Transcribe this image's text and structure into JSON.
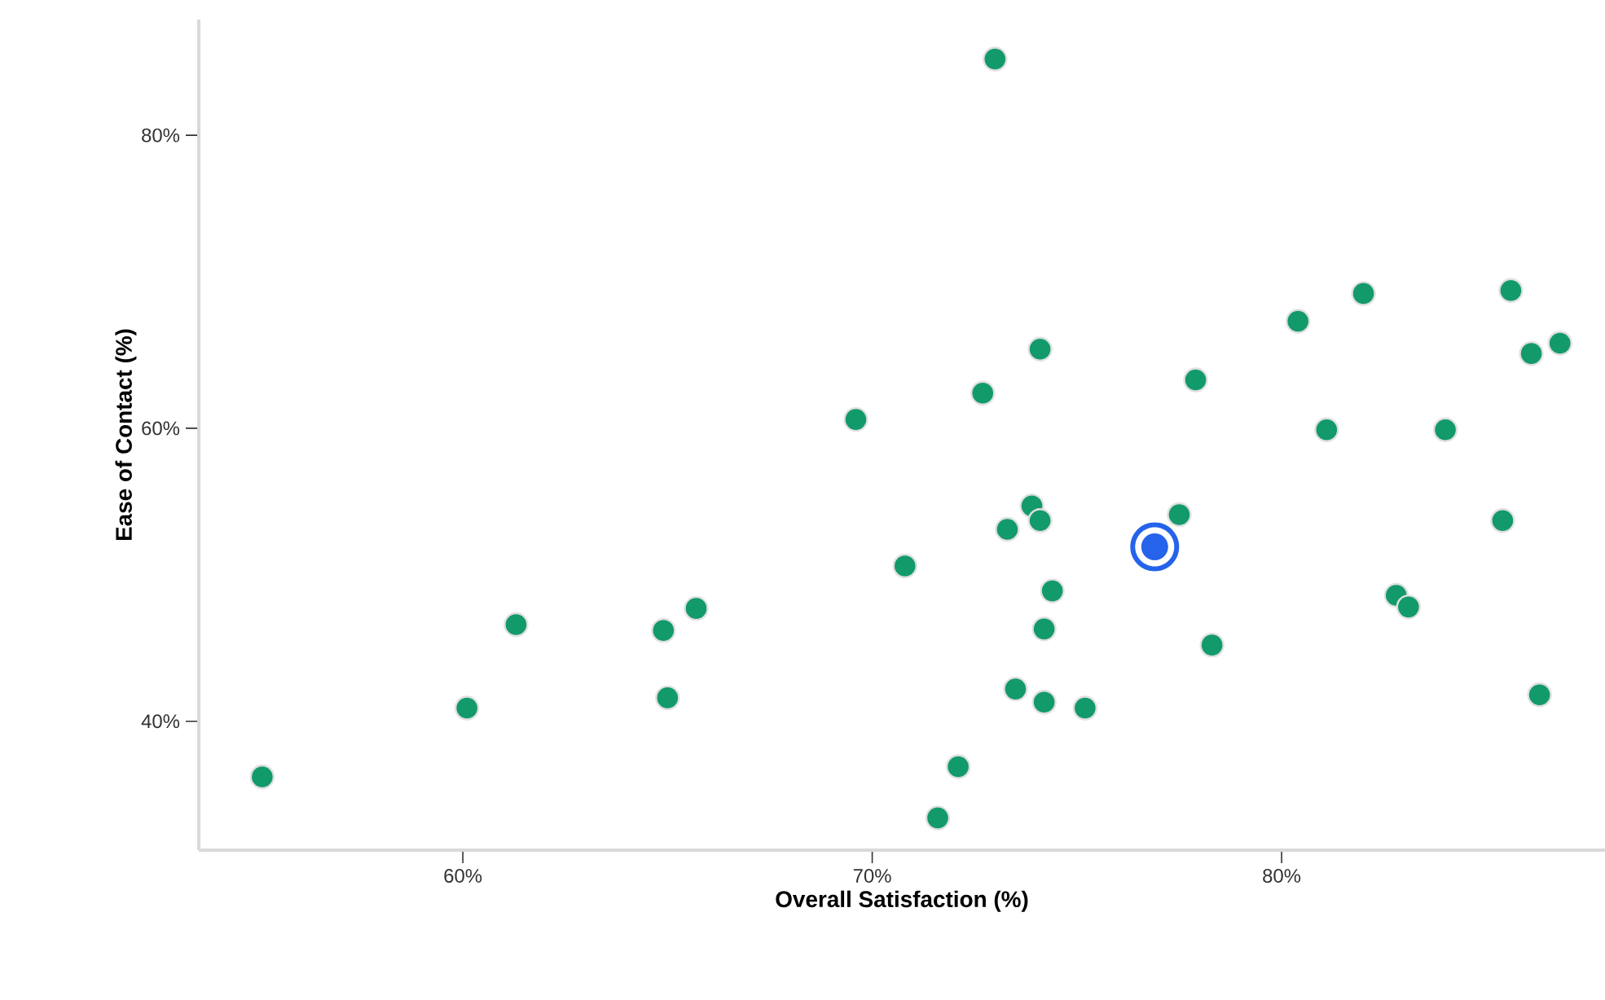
{
  "chart_data": {
    "type": "scatter",
    "xlabel": "Overall Satisfaction (%)",
    "ylabel": "Ease of Contact (%)",
    "xlim": [
      53.55,
      87.9
    ],
    "ylim": [
      31.2,
      87.9
    ],
    "xticks": [
      {
        "value": 60,
        "label": "60%"
      },
      {
        "value": 70,
        "label": "70%"
      },
      {
        "value": 80,
        "label": "80%"
      }
    ],
    "yticks": [
      {
        "value": 40,
        "label": "40%"
      },
      {
        "value": 60,
        "label": "60%"
      },
      {
        "value": 80,
        "label": "80%"
      }
    ],
    "marker": "circle",
    "grid": false,
    "series": [
      {
        "color": "#139a6b",
        "x": [
          73.0,
          55.1,
          60.1,
          61.3,
          64.9,
          65.0,
          65.7,
          69.6,
          70.8,
          72.1,
          71.6,
          72.7,
          73.3,
          73.9,
          74.1,
          74.1,
          74.4,
          74.2,
          74.2,
          73.5,
          75.2,
          77.5,
          77.9,
          78.3,
          80.4,
          81.1,
          82.0,
          82.8,
          83.1,
          84.0,
          85.4,
          85.6,
          86.1,
          86.8,
          86.3
        ],
        "values": [
          85.2,
          36.2,
          40.9,
          46.6,
          46.2,
          41.6,
          47.7,
          60.6,
          50.6,
          36.9,
          33.4,
          62.4,
          53.1,
          54.7,
          65.4,
          53.7,
          48.9,
          46.3,
          41.3,
          42.2,
          40.9,
          54.1,
          63.3,
          45.2,
          67.3,
          59.9,
          69.2,
          48.6,
          47.8,
          59.9,
          53.7,
          69.4,
          65.1,
          65.8,
          41.8
        ]
      },
      {
        "color": "#2563eb",
        "x": [
          76.9
        ],
        "values": [
          51.9
        ]
      }
    ]
  }
}
